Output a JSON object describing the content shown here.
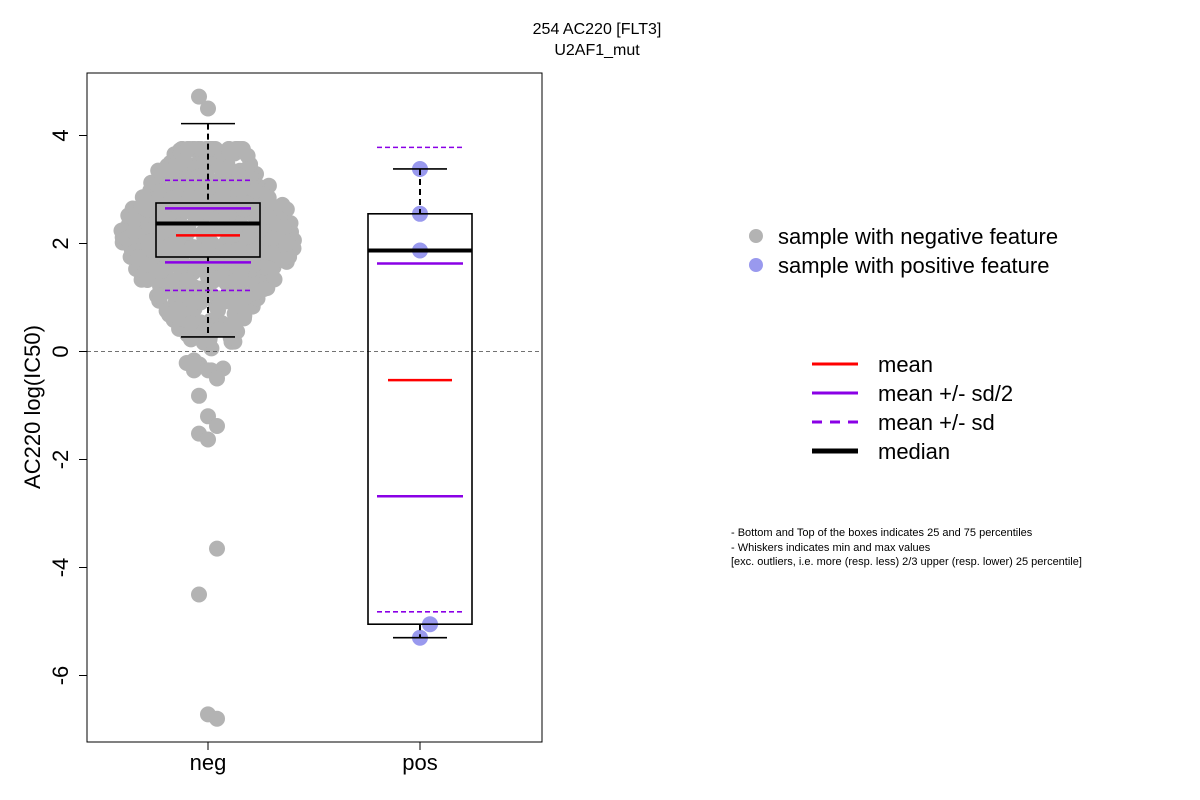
{
  "chart_data": {
    "type": "box",
    "title": "254 AC220 [FLT3]",
    "subtitle": "U2AF1_mut",
    "xlabel": "",
    "ylabel": "AC220 log(IC50)",
    "ylim": [
      -7.2,
      5.0
    ],
    "yticks": [
      -6,
      -4,
      -2,
      0,
      2,
      4
    ],
    "ytick_labels": [
      "-6",
      "-4",
      "-2",
      "0",
      "2",
      "4"
    ],
    "reference_line_y": 0,
    "categories": [
      "neg",
      "pos"
    ],
    "groups": [
      {
        "name": "neg",
        "color": "#b3b3b3",
        "q1": 1.75,
        "median": 2.37,
        "q3": 2.75,
        "whisker_low": 0.27,
        "whisker_high": 4.22,
        "mean": 2.15,
        "mean_minus_half_sd": 1.65,
        "mean_plus_half_sd": 2.65,
        "mean_minus_sd": 1.13,
        "mean_plus_sd": 3.17,
        "outliers": [
          4.72,
          4.5,
          -0.5,
          -0.82,
          -1.2,
          -1.38,
          -1.52,
          -1.63,
          -3.65,
          -4.5,
          -6.72,
          -6.8
        ],
        "cloud": {
          "count": 620,
          "mean": 2.15,
          "sd": 0.95,
          "min": -0.35,
          "max": 3.75
        }
      },
      {
        "name": "pos",
        "color": "#9999ee",
        "q1": -5.05,
        "median": 1.87,
        "q3": 2.55,
        "whisker_low": -5.3,
        "whisker_high": 3.38,
        "mean": -0.53,
        "mean_minus_half_sd": -2.68,
        "mean_plus_half_sd": 1.63,
        "mean_minus_sd": -4.82,
        "mean_plus_sd": 3.78,
        "points": [
          3.38,
          2.55,
          1.87,
          -5.05,
          -5.3
        ]
      }
    ],
    "legend_points": [
      {
        "label": "sample with negative feature",
        "color": "#b3b3b3"
      },
      {
        "label": "sample with positive feature",
        "color": "#9999ee"
      }
    ],
    "legend_lines": [
      {
        "label": "mean",
        "color": "#ff0000",
        "style": "solid"
      },
      {
        "label": "mean +/- sd/2",
        "color": "#8a00e6",
        "style": "solid"
      },
      {
        "label": "mean +/- sd",
        "color": "#8a00e6",
        "style": "dashed"
      },
      {
        "label": "median",
        "color": "#000000",
        "style": "thick"
      }
    ],
    "notes": [
      "- Bottom and Top of the boxes indicates 25 and 75 percentiles",
      "- Whiskers indicates min and max values",
      "[exc. outliers, i.e. more (resp. less) 2/3 upper (resp. lower) 25 percentile]"
    ]
  }
}
